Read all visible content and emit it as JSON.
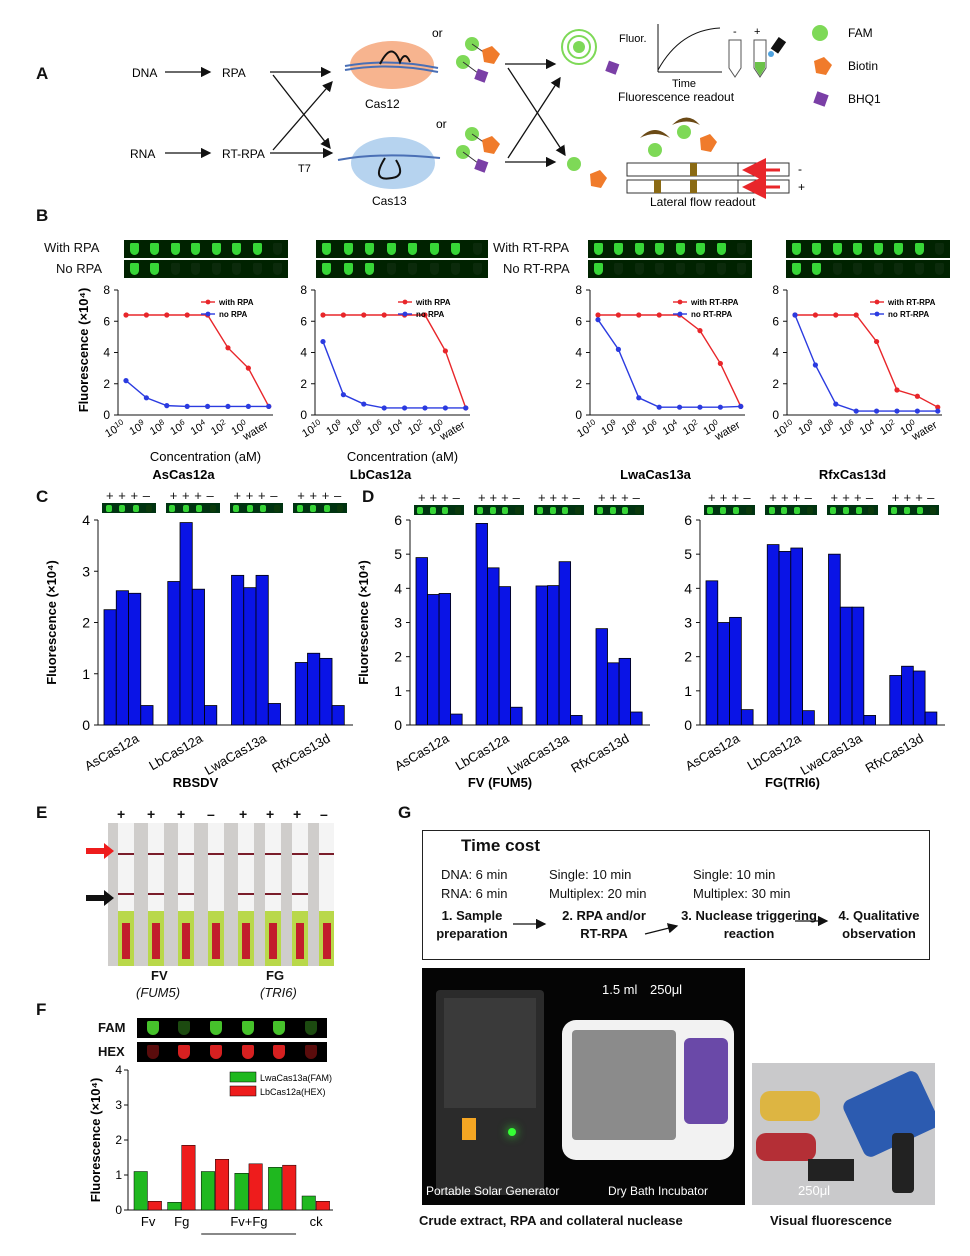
{
  "panels": {
    "A": "A",
    "B": "B",
    "C": "C",
    "D": "D",
    "E": "E",
    "F": "F",
    "G": "G"
  },
  "schematic": {
    "dna": "DNA",
    "rna": "RNA",
    "rpa": "RPA",
    "rt_rpa": "RT-RPA",
    "t7": "T7",
    "cas12": "Cas12",
    "cas13": "Cas13",
    "or1": "or",
    "or2": "or",
    "fluor_axis": "Fluor.",
    "time_axis": "Time",
    "fluor_readout": "Fluorescence readout",
    "lateral_readout": "Lateral flow readout",
    "minus": "-",
    "plus": "+",
    "legend": [
      {
        "name": "FAM",
        "color": "#7ed957"
      },
      {
        "name": "Biotin",
        "color": "#f07b2b"
      },
      {
        "name": "BHQ1",
        "color": "#7a3fa6"
      }
    ]
  },
  "panelB": {
    "ylabel": "Fluorescence (×10⁴)",
    "xlabel": "Concentration (aM)",
    "tube_labels": {
      "with_rpa": "With RPA",
      "no_rpa": "No RPA",
      "with_rt_rpa": "With RT-RPA",
      "no_rt_rpa": "No RT-RPA"
    },
    "titles": [
      "AsCas12a",
      "LbCas12a",
      "LwaCas13a",
      "RfxCas13d"
    ]
  },
  "panelC": {
    "title": "RBSDV",
    "ylabel": "Fluorescence (×10⁴)",
    "signs": [
      "+",
      "+",
      "+",
      "–"
    ]
  },
  "panelD": {
    "titles": [
      "FV (FUM5)",
      "FG(TRI6)"
    ],
    "ylabel": "Fluorescence (×10⁴)",
    "signs": [
      "+",
      "+",
      "+",
      "–"
    ]
  },
  "panelE": {
    "signs": [
      "+",
      "+",
      "+",
      "–",
      "+",
      "+",
      "+",
      "–"
    ],
    "fv": "FV",
    "fv_gene": "(FUM5)",
    "fg": "FG",
    "fg_gene": "(TRI6)"
  },
  "panelF": {
    "fam": "FAM",
    "hex": "HEX",
    "ylabel": "Fluorescence (×10⁴)"
  },
  "panelG": {
    "title": "Time cost",
    "dna_time": "DNA: 6 min",
    "rna_time": "RNA: 6 min",
    "step1": "1. Sample preparation",
    "single1": "Single: 10 min",
    "multi1": "Multiplex: 20 min",
    "step2": "2. RPA and/or RT-RPA",
    "single2": "Single: 10 min",
    "multi2": "Multiplex: 30 min",
    "step3": "3. Nuclease triggering reaction",
    "step4": "4. Qualitative observation",
    "vol1": "1.5 ml",
    "vol2": "250μl",
    "vol3": "250μl",
    "solar": "Portable Solar Generator",
    "incubator": "Dry Bath Incubator",
    "caption1": "Crude extract, RPA and collateral nuclease",
    "caption2": "Visual fluorescence"
  },
  "chart_data": [
    {
      "type": "line",
      "title": "AsCas12a",
      "xlabel": "Concentration (aM)",
      "ylabel": "Fluorescence (×10⁴)",
      "categories": [
        "10^10",
        "10^9",
        "10^8",
        "10^6",
        "10^4",
        "10^2",
        "10^0",
        "water"
      ],
      "ylim": [
        0,
        8
      ],
      "series": [
        {
          "name": "with RPA",
          "color": "#e8262a",
          "values": [
            6.4,
            6.4,
            6.4,
            6.4,
            6.4,
            4.3,
            3.0,
            0.55
          ]
        },
        {
          "name": "no RPA",
          "color": "#2b3be0",
          "values": [
            2.2,
            1.1,
            0.6,
            0.55,
            0.55,
            0.55,
            0.55,
            0.55
          ]
        }
      ]
    },
    {
      "type": "line",
      "title": "LbCas12a",
      "xlabel": "Concentration (aM)",
      "ylabel": "Fluorescence (×10⁴)",
      "categories": [
        "10^10",
        "10^9",
        "10^8",
        "10^6",
        "10^4",
        "10^2",
        "10^0",
        "water"
      ],
      "ylim": [
        0,
        8
      ],
      "series": [
        {
          "name": "with RPA",
          "color": "#e8262a",
          "values": [
            6.4,
            6.4,
            6.4,
            6.4,
            6.4,
            6.4,
            4.1,
            0.45
          ]
        },
        {
          "name": "no RPA",
          "color": "#2b3be0",
          "values": [
            4.7,
            1.3,
            0.7,
            0.45,
            0.45,
            0.45,
            0.45,
            0.45
          ]
        }
      ]
    },
    {
      "type": "line",
      "title": "LwaCas13a",
      "xlabel": "Concentration (aM)",
      "ylabel": "Fluorescence (×10⁴)",
      "categories": [
        "10^10",
        "10^9",
        "10^8",
        "10^6",
        "10^4",
        "10^2",
        "10^0",
        "water"
      ],
      "ylim": [
        0,
        8
      ],
      "series": [
        {
          "name": "with RT-RPA",
          "color": "#e8262a",
          "values": [
            6.4,
            6.4,
            6.4,
            6.4,
            6.4,
            5.4,
            3.3,
            0.55
          ]
        },
        {
          "name": "no RT-RPA",
          "color": "#2b3be0",
          "values": [
            6.1,
            4.2,
            1.1,
            0.5,
            0.5,
            0.5,
            0.5,
            0.55
          ]
        }
      ]
    },
    {
      "type": "line",
      "title": "RfxCas13d",
      "xlabel": "Concentration (aM)",
      "ylabel": "Fluorescence (×10⁴)",
      "categories": [
        "10^10",
        "10^9",
        "10^8",
        "10^6",
        "10^4",
        "10^2",
        "10^0",
        "water"
      ],
      "ylim": [
        0,
        8
      ],
      "series": [
        {
          "name": "with RT-RPA",
          "color": "#e8262a",
          "values": [
            6.4,
            6.4,
            6.4,
            6.4,
            4.7,
            1.6,
            1.2,
            0.5
          ]
        },
        {
          "name": "no RT-RPA",
          "color": "#2b3be0",
          "values": [
            6.4,
            3.2,
            0.7,
            0.25,
            0.25,
            0.25,
            0.25,
            0.25
          ]
        }
      ]
    },
    {
      "type": "bar",
      "title": "RBSDV",
      "ylabel": "Fluorescence (×10⁴)",
      "ylim": [
        0,
        4
      ],
      "categories": [
        "AsCas12a",
        "LbCas12a",
        "LwaCas13a",
        "RfxCas13d"
      ],
      "values": [
        [
          2.25,
          2.62,
          2.57,
          0.38
        ],
        [
          2.8,
          3.95,
          2.65,
          0.38
        ],
        [
          2.92,
          2.68,
          2.92,
          0.42
        ],
        [
          1.22,
          1.4,
          1.3,
          0.38
        ]
      ]
    },
    {
      "type": "bar",
      "title": "FV (FUM5)",
      "ylabel": "Fluorescence (×10⁴)",
      "ylim": [
        0,
        6
      ],
      "categories": [
        "AsCas12a",
        "LbCas12a",
        "LwaCas13a",
        "RfxCas13d"
      ],
      "values": [
        [
          4.9,
          3.82,
          3.85,
          0.32
        ],
        [
          5.9,
          4.6,
          4.05,
          0.52
        ],
        [
          4.07,
          4.08,
          4.78,
          0.28
        ],
        [
          2.82,
          1.82,
          1.95,
          0.38
        ]
      ]
    },
    {
      "type": "bar",
      "title": "FG(TRI6)",
      "ylabel": "Fluorescence (×10⁴)",
      "ylim": [
        0,
        6
      ],
      "categories": [
        "AsCas12a",
        "LbCas12a",
        "LwaCas13a",
        "RfxCas13d"
      ],
      "values": [
        [
          4.22,
          3.0,
          3.15,
          0.45
        ],
        [
          5.28,
          5.08,
          5.18,
          0.42
        ],
        [
          5.0,
          3.45,
          3.45,
          0.28
        ],
        [
          1.45,
          1.72,
          1.58,
          0.38
        ]
      ]
    },
    {
      "type": "bar",
      "ylabel": "Fluorescence (×10⁴)",
      "ylim": [
        0,
        4
      ],
      "categories": [
        "Fv",
        "Fg",
        "Fv+Fg",
        "Fv+Fg",
        "Fv+Fg",
        "ck"
      ],
      "series": [
        {
          "name": "LwaCas13a(FAM)",
          "color": "#1fb81f",
          "values": [
            1.1,
            0.22,
            1.1,
            1.05,
            1.22,
            0.4
          ]
        },
        {
          "name": "LbCas12a(HEX)",
          "color": "#ee1c1c",
          "values": [
            0.25,
            1.85,
            1.45,
            1.32,
            1.28,
            0.25
          ]
        }
      ]
    }
  ]
}
